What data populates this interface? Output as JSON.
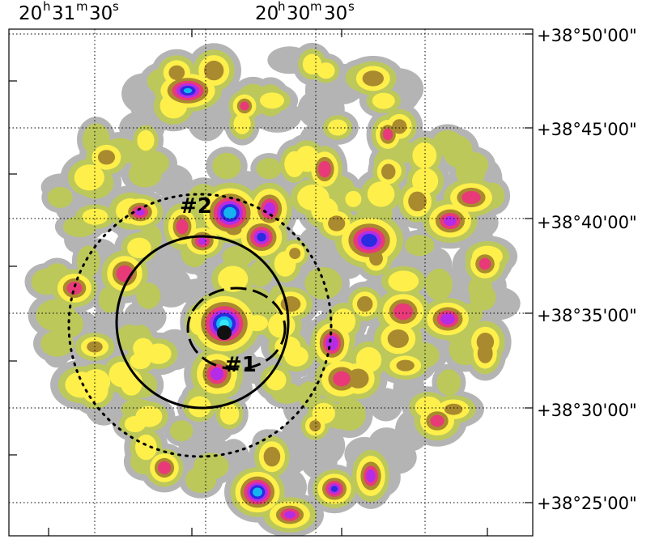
{
  "ra_ticks": [
    {
      "h": "20",
      "m": "31",
      "s": "30",
      "hs": "h",
      "ms": "m",
      "ss": "s"
    },
    {
      "h": "20",
      "m": "30",
      "s": "30",
      "hs": "h",
      "ms": "m",
      "ss": "s"
    }
  ],
  "dec_ticks": [
    {
      "deg": "+38",
      "min": "50",
      "sec": "00"
    },
    {
      "deg": "+38",
      "min": "45",
      "sec": "00"
    },
    {
      "deg": "+38",
      "min": "40",
      "sec": "00"
    },
    {
      "deg": "+38",
      "min": "35",
      "sec": "00"
    },
    {
      "deg": "+38",
      "min": "30",
      "sec": "00"
    },
    {
      "deg": "+38",
      "min": "25",
      "sec": "00"
    }
  ],
  "region_labels": [
    "#1",
    "#2"
  ],
  "colors": {
    "level1": "#b4b4b4",
    "level2": "#bcc85a",
    "level3": "#ffef4a",
    "level4": "#aa8a2e",
    "level5": "#e83a78",
    "level6": "#b42ce8",
    "level7": "#2b2be0",
    "level8": "#14b4f0",
    "level9": "#36e6ff",
    "core": "#111111"
  }
}
